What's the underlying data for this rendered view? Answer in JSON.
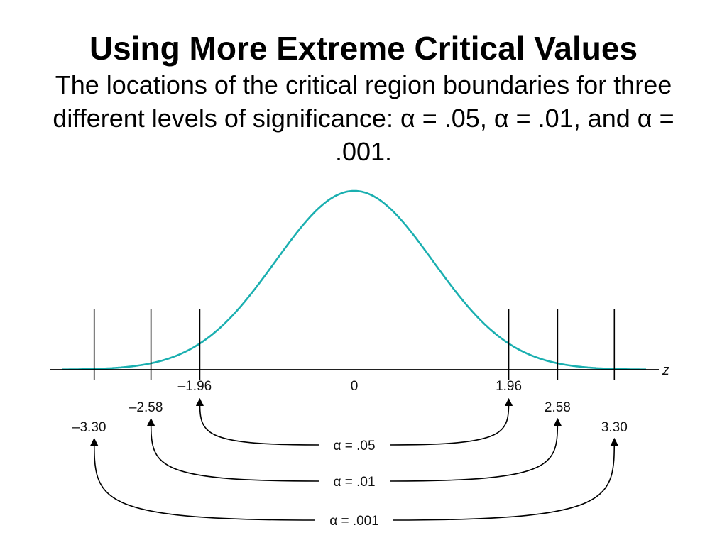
{
  "slide": {
    "title": "Using More Extreme Critical Values",
    "subtitle": "The locations of the critical region boundaries for three different levels of significance: α = .05, α = .01, and α = .001."
  },
  "colors": {
    "curve": "#1aafb0",
    "lines": "#000000"
  },
  "diagram": {
    "axis_label": "z",
    "center_label": "0",
    "z_min": -4.25,
    "z_max": 4.25,
    "levels": [
      {
        "alpha_label": "α = .05",
        "critical_value": 1.96,
        "left_label": "–1.96",
        "right_label": "1.96"
      },
      {
        "alpha_label": "α = .01",
        "critical_value": 2.58,
        "left_label": "–2.58",
        "right_label": "2.58"
      },
      {
        "alpha_label": "α = .001",
        "critical_value": 3.3,
        "left_label": "–3.30",
        "right_label": "3.30"
      }
    ]
  }
}
